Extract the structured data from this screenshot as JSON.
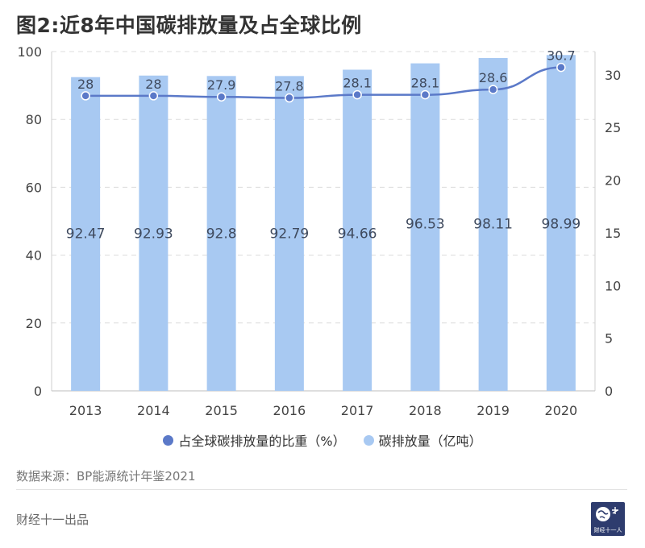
{
  "title": "图2:近8年中国碳排放量及占全球比例",
  "colors": {
    "bar": "#a8c9f2",
    "line": "#5b79c8",
    "grid": "#dcdcdc",
    "axis_text": "#444444"
  },
  "chart_data": {
    "type": "bar+line",
    "categories": [
      "2013",
      "2014",
      "2015",
      "2016",
      "2017",
      "2018",
      "2019",
      "2020"
    ],
    "series": [
      {
        "name": "碳排放量（亿吨）",
        "type": "bar",
        "axis": "left",
        "values": [
          92.47,
          92.93,
          92.8,
          92.79,
          94.66,
          96.53,
          98.11,
          98.99
        ],
        "labels": [
          "92.47",
          "92.93",
          "92.8",
          "92.79",
          "94.66",
          "96.53",
          "98.11",
          "98.99"
        ]
      },
      {
        "name": "占全球碳排放量的比重（%）",
        "type": "line",
        "axis": "right",
        "values": [
          28,
          28,
          27.9,
          27.8,
          28.1,
          28.1,
          28.6,
          30.7
        ],
        "labels": [
          "28",
          "28",
          "27.9",
          "27.8",
          "28.1",
          "28.1",
          "28.6",
          "30.7"
        ]
      }
    ],
    "left_axis": {
      "range": [
        0,
        100
      ],
      "ticks": [
        "0",
        "20",
        "40",
        "60",
        "80",
        "100"
      ],
      "tick_values": [
        0,
        20,
        40,
        60,
        80,
        100
      ]
    },
    "right_axis": {
      "range": [
        0,
        32.2
      ],
      "ticks": [
        "0",
        "5",
        "10",
        "15",
        "20",
        "25",
        "30"
      ],
      "tick_values": [
        0,
        5,
        10,
        15,
        20,
        25,
        30
      ]
    },
    "grid": true,
    "legend_position": "bottom"
  },
  "legend": {
    "line_label": "占全球碳排放量的比重（%）",
    "bar_label": "碳排放量（亿吨）"
  },
  "source": "数据来源：BP能源统计年鉴2021",
  "producer": "财经十一出品",
  "logo": {
    "text": "财经十一人",
    "icon": "globe-logo-icon"
  }
}
